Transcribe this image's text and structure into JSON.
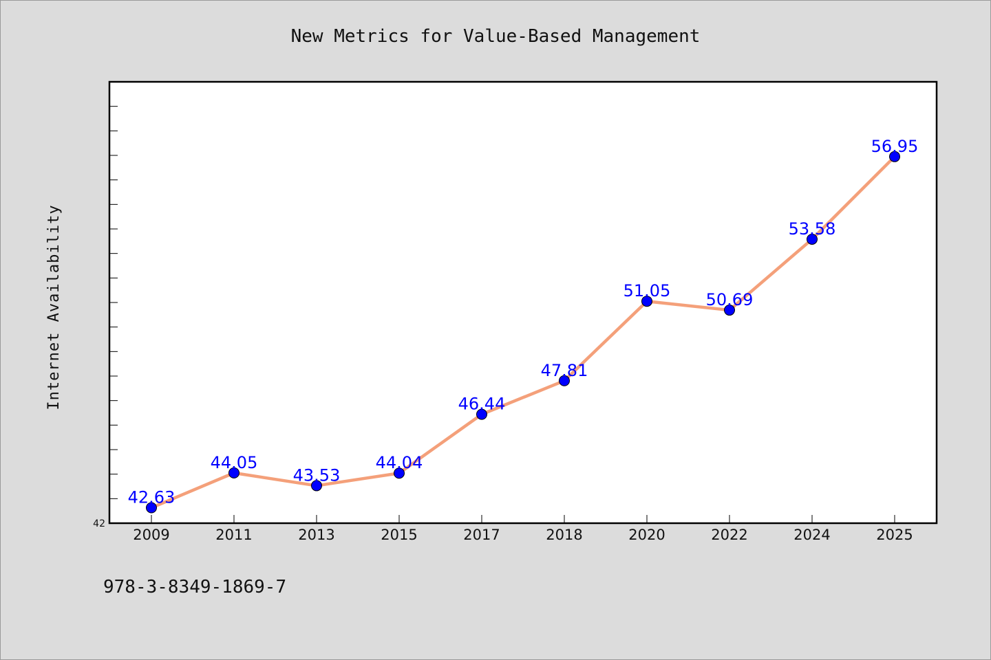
{
  "chart_data": {
    "type": "line",
    "title": "New Metrics for Value-Based Management",
    "xlabel": "",
    "ylabel": "Internet Availability",
    "categories": [
      "2009",
      "2011",
      "2013",
      "2015",
      "2017",
      "2018",
      "2020",
      "2022",
      "2024",
      "2025"
    ],
    "series": [
      {
        "values": [
          42.63,
          44.05,
          43.53,
          44.04,
          46.44,
          47.81,
          51.05,
          50.69,
          53.58,
          56.95
        ],
        "data_labels": [
          "42.63",
          "44.05",
          "43.53",
          "44.04",
          "46.44",
          "47.81",
          "51.05",
          "50.69",
          "53.58",
          "56.95"
        ],
        "line_color": "#f4a07a",
        "marker_color": "#0000ff"
      }
    ],
    "ylim": [
      42,
      60
    ],
    "y_tick_labels": [
      "42"
    ],
    "grid": false,
    "legend": "none"
  },
  "footer": {
    "isbn": "978-3-8349-1869-7"
  },
  "colors": {
    "background": "#dcdcdc",
    "plot_background": "#ffffff",
    "label_color": "#0000ff"
  }
}
